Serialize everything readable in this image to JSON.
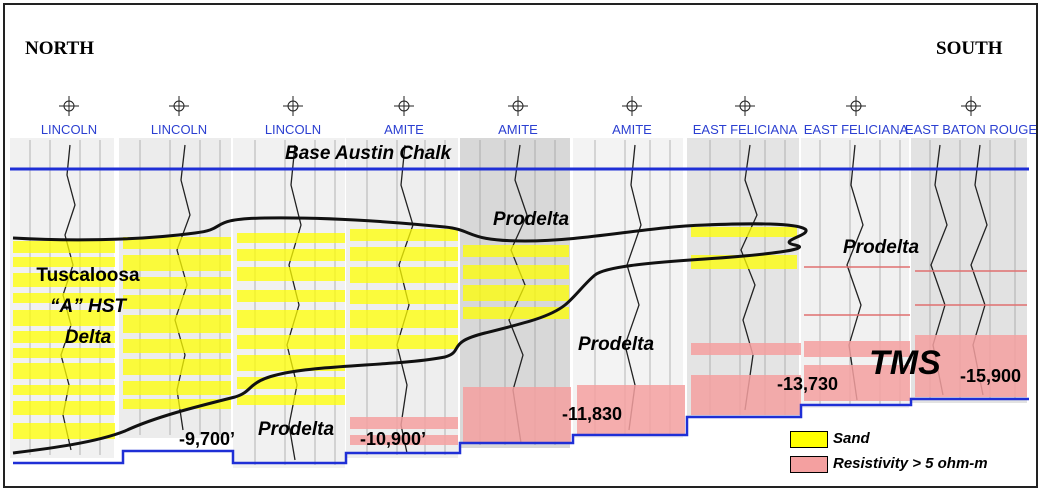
{
  "directions": {
    "left": "NORTH",
    "right": "SOUTH"
  },
  "wells": [
    {
      "label": "LINCOLN"
    },
    {
      "label": "LINCOLN"
    },
    {
      "label": "LINCOLN"
    },
    {
      "label": "AMITE"
    },
    {
      "label": "AMITE"
    },
    {
      "label": "AMITE"
    },
    {
      "label": "EAST FELICIANA"
    },
    {
      "label": "EAST FELICIANA"
    },
    {
      "label": "EAST BATON ROUGE"
    }
  ],
  "well_symbol_icon": "well-location-symbol-icon",
  "annotations": {
    "base_austin_chalk": "Base Austin Chalk",
    "tuscaloosa": [
      "Tuscaloosa",
      "“A” HST",
      "Delta"
    ],
    "prodelta_labels": [
      "Prodelta",
      "Prodelta",
      "Prodelta",
      "Prodelta"
    ],
    "tms": "TMS"
  },
  "depths": [
    "-9,700’",
    "-10,900’",
    "-11,830",
    "-13,730",
    "-15,900"
  ],
  "legend": {
    "sand": "Sand",
    "resistivity": "Resistivity > 5 ohm-m"
  },
  "colors": {
    "sand": "#ffff00",
    "resistivity": "#f4a0a0",
    "datum_line": "#1f2fd6",
    "well_label": "#2b3fd1"
  }
}
